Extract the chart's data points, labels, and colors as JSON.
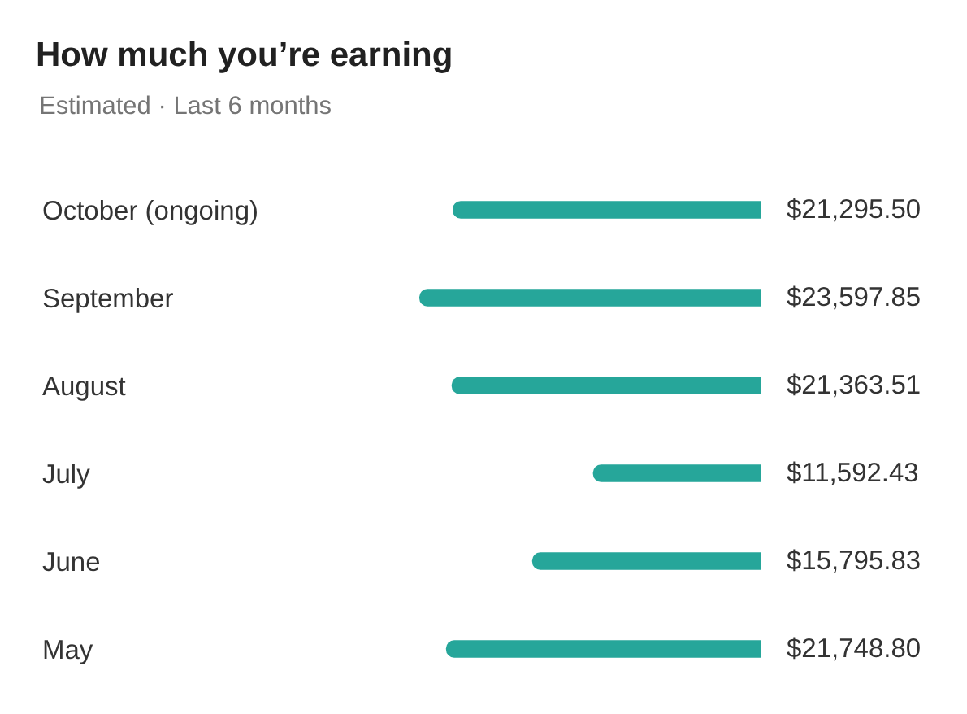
{
  "chart_data": {
    "type": "bar",
    "orientation": "horizontal",
    "title": "How much you’re earning",
    "subtitle": "Estimated · Last 6 months",
    "categories": [
      "October (ongoing)",
      "September",
      "August",
      "July",
      "June",
      "May"
    ],
    "values": [
      21295.5,
      23597.85,
      21363.51,
      11592.43,
      15795.83,
      21748.8
    ],
    "value_labels": [
      "$21,295.50",
      "$23,597.85",
      "$21,363.51",
      "$11,592.43",
      "$15,795.83",
      "$21,748.80"
    ],
    "color": "#26a69a",
    "tick_labels": "y"
  }
}
